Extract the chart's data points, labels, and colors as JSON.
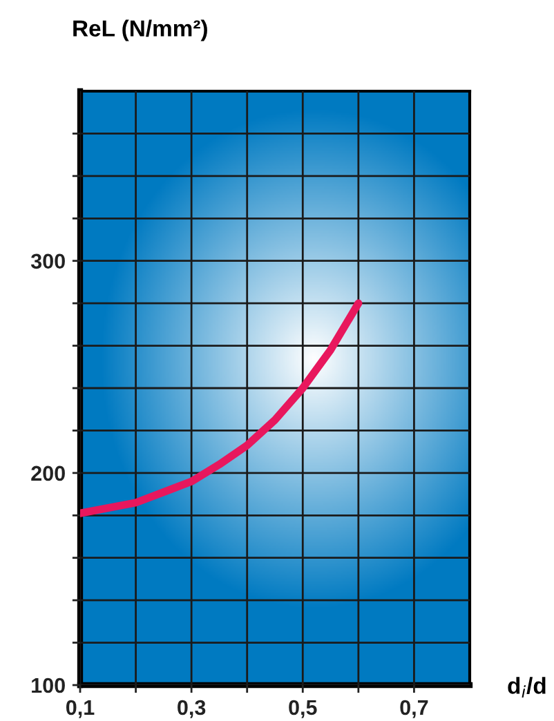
{
  "chart_data": {
    "type": "line",
    "xlabel": "d$_{i}$/d",
    "ylabel": "ReL (N/mm²)",
    "x": [
      0.1,
      0.2,
      0.3,
      0.35,
      0.4,
      0.45,
      0.5,
      0.55,
      0.6
    ],
    "series": [
      {
        "color": "#e8175d",
        "values": [
          181,
          186,
          196,
          204,
          213,
          225,
          240,
          258,
          280
        ]
      }
    ],
    "xlim": [
      0.1,
      0.8
    ],
    "ylim": [
      100,
      380
    ],
    "xticks": [
      {
        "value": 0.1,
        "label": "0,1"
      },
      {
        "value": 0.2,
        "label": null
      },
      {
        "value": 0.3,
        "label": "0,3"
      },
      {
        "value": 0.4,
        "label": null
      },
      {
        "value": 0.5,
        "label": "0,5"
      },
      {
        "value": 0.6,
        "label": null
      },
      {
        "value": 0.7,
        "label": "0,7"
      }
    ],
    "yticks": [
      100,
      {
        "value": 120,
        "label": null
      },
      {
        "value": 140,
        "label": null
      },
      {
        "value": 160,
        "label": null
      },
      {
        "value": 180,
        "label": null
      },
      200,
      {
        "value": 220,
        "label": null
      },
      {
        "value": 240,
        "label": null
      },
      {
        "value": 260,
        "label": null
      },
      {
        "value": 280,
        "label": null
      },
      300,
      {
        "value": 320,
        "label": null
      },
      {
        "value": 340,
        "label": null
      },
      {
        "value": 360,
        "label": null
      }
    ],
    "grid": true,
    "marker": "none",
    "line_style": "solid"
  }
}
